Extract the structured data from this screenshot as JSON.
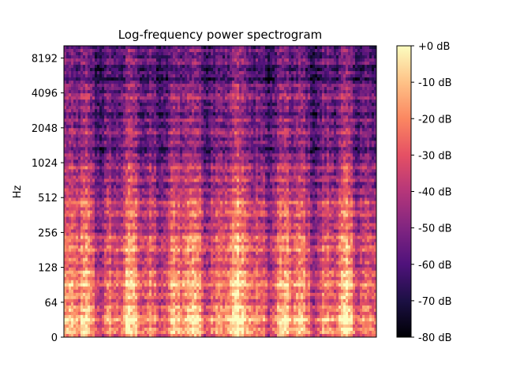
{
  "chart_data": {
    "type": "heatmap",
    "title": "Log-frequency power spectrogram",
    "xlabel": "",
    "ylabel": "Hz",
    "y_scale": "log2-like",
    "y_ticks": [
      "0",
      "64",
      "128",
      "256",
      "512",
      "1024",
      "2048",
      "4096",
      "8192"
    ],
    "y_tick_values": [
      0,
      64,
      128,
      256,
      512,
      1024,
      2048,
      4096,
      8192
    ],
    "x_ticks": [],
    "colorbar": {
      "label": "",
      "ticks": [
        "+0 dB",
        "-10 dB",
        "-20 dB",
        "-30 dB",
        "-40 dB",
        "-50 dB",
        "-60 dB",
        "-70 dB",
        "-80 dB"
      ],
      "tick_values": [
        0,
        -10,
        -20,
        -30,
        -40,
        -50,
        -60,
        -70,
        -80
      ],
      "range": [
        -80,
        0
      ],
      "colormap": "magma"
    },
    "value_range_db": [
      -80,
      0
    ],
    "grid": false,
    "legend": "none"
  }
}
